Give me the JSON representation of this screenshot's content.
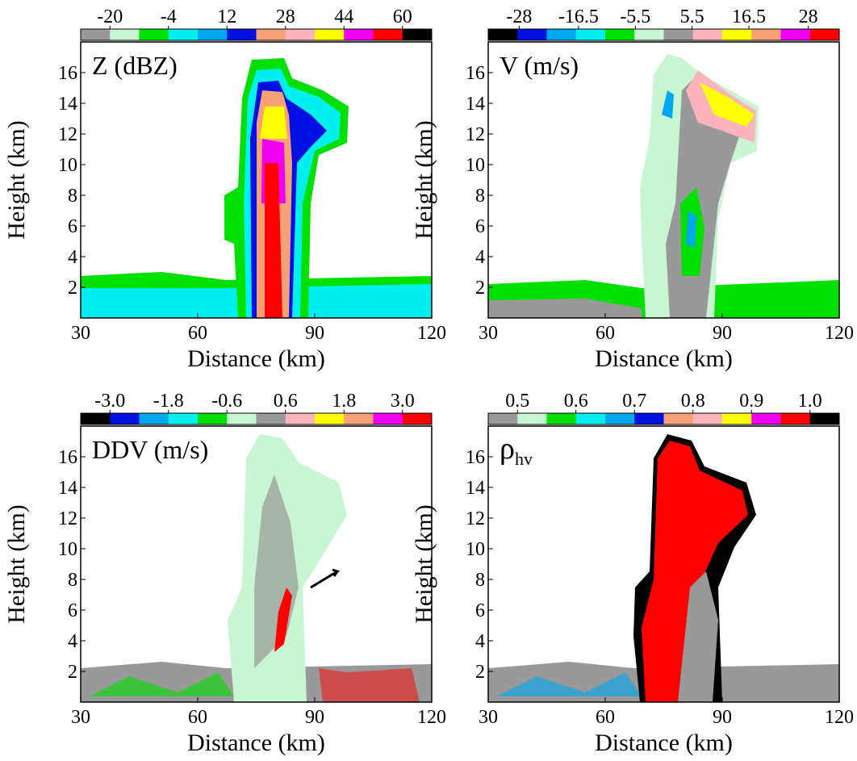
{
  "chart_data": [
    {
      "type": "heatmap",
      "title": "Z (dBZ)",
      "xlabel": "Distance (km)",
      "ylabel": "Height (km)",
      "xlim": [
        30,
        120
      ],
      "xticks": [
        30,
        60,
        90,
        120
      ],
      "ylim": [
        0,
        18
      ],
      "yticks": [
        2,
        4,
        6,
        8,
        10,
        12,
        14,
        16
      ],
      "colorbar": {
        "lim": [
          -28,
          68
        ],
        "ticks": [
          -20,
          -4,
          12,
          28,
          44,
          60
        ],
        "colors": [
          "#999999",
          "#c8f5d2",
          "#00e000",
          "#00f0f0",
          "#00a8f0",
          "#0010e0",
          "#f8a078",
          "#fcb4bc",
          "#ffff00",
          "#f000f0",
          "#ff0000",
          "#000000"
        ]
      }
    },
    {
      "type": "heatmap",
      "title": "V (m/s)",
      "xlabel": "Distance (km)",
      "ylabel": "Height (km)",
      "xlim": [
        30,
        120
      ],
      "xticks": [
        30,
        60,
        90,
        120
      ],
      "ylim": [
        0,
        18
      ],
      "yticks": [
        2,
        4,
        6,
        8,
        10,
        12,
        14,
        16
      ],
      "colorbar": {
        "lim": [
          -34,
          34
        ],
        "ticks": [
          -28,
          -16.5,
          -5.5,
          5.5,
          16.5,
          28
        ],
        "colors": [
          "#000000",
          "#0010e0",
          "#00a8f0",
          "#00f0f0",
          "#00e000",
          "#c8f5d2",
          "#999999",
          "#fcb4bc",
          "#ffff00",
          "#f8a078",
          "#f000f0",
          "#ff0000"
        ]
      }
    },
    {
      "type": "heatmap",
      "title": "DDV (m/s)",
      "xlabel": "Distance (km)",
      "ylabel": "Height (km)",
      "xlim": [
        30,
        120
      ],
      "xticks": [
        30,
        60,
        90,
        120
      ],
      "ylim": [
        0,
        18
      ],
      "yticks": [
        2,
        4,
        6,
        8,
        10,
        12,
        14,
        16
      ],
      "colorbar": {
        "lim": [
          -3.6,
          3.6
        ],
        "ticks": [
          {
            "value": -3,
            "label": "-3.0"
          },
          -1.8,
          -0.6,
          0.6,
          1.8,
          {
            "value": 3,
            "label": "3.0"
          }
        ],
        "colors": [
          "#000000",
          "#0010e0",
          "#00a8f0",
          "#00f0f0",
          "#00e000",
          "#c8f5d2",
          "#999999",
          "#fcb4bc",
          "#ffff00",
          "#f8a078",
          "#f000f0",
          "#ff0000"
        ]
      }
    },
    {
      "type": "heatmap",
      "title": "ρ",
      "title_subscript": "hv",
      "xlabel": "Distance (km)",
      "ylabel": "Height (km)",
      "xlim": [
        30,
        120
      ],
      "xticks": [
        30,
        60,
        90,
        120
      ],
      "ylim": [
        0,
        18
      ],
      "yticks": [
        2,
        4,
        6,
        8,
        10,
        12,
        14,
        16
      ],
      "colorbar": {
        "lim": [
          0.45,
          1.05
        ],
        "ticks": [
          0.5,
          0.6,
          0.7,
          0.8,
          0.9,
          {
            "value": 1,
            "label": "1.0"
          }
        ],
        "colors": [
          "#999999",
          "#c8f5d2",
          "#00e000",
          "#00f0f0",
          "#00a8f0",
          "#0010e0",
          "#f8a078",
          "#fcb4bc",
          "#ffff00",
          "#f000f0",
          "#ff0000",
          "#000000"
        ]
      }
    }
  ]
}
